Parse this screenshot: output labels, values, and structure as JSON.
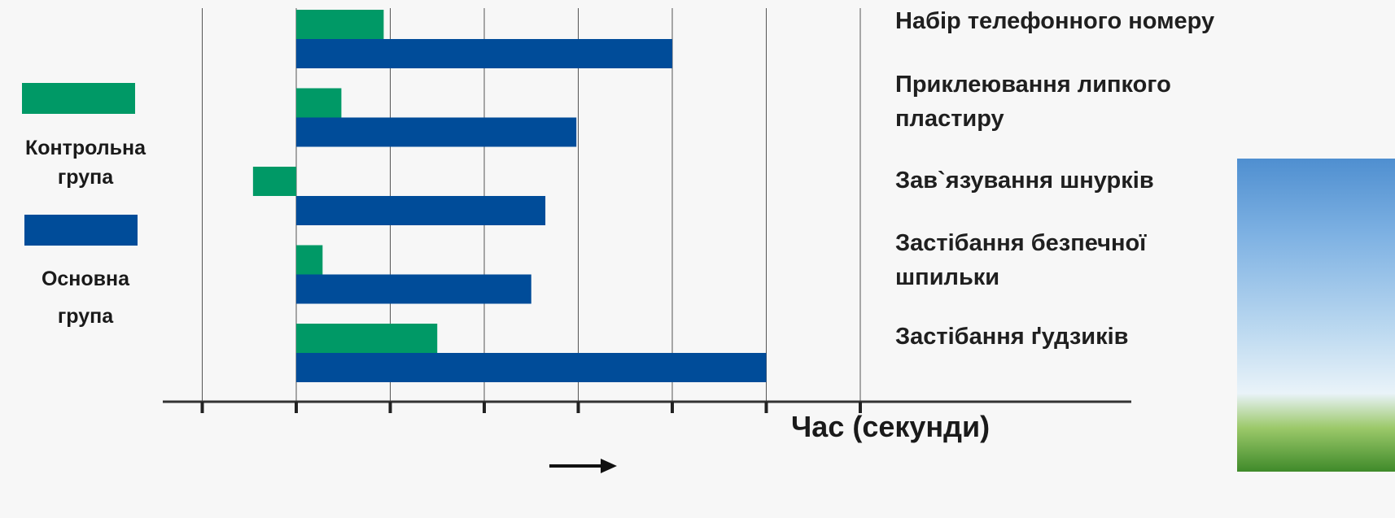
{
  "chart_data": {
    "type": "bar",
    "orientation": "horizontal",
    "categories": [
      "Набір телефонного номеру",
      "Приклеювання липкого пластиру",
      "Зав`язування шнурків",
      "Застібання безпечної шпильки",
      "Застібання ґудзиків"
    ],
    "category_labels_display": [
      "Набір телефонного номеру",
      "Приклеювання липкого\nпластиру",
      "Зав`язування шнурків",
      "Застібання безпечної\nшпильки",
      "Застібання ґудзиків"
    ],
    "series": [
      {
        "name": "Контрольна група",
        "color": "#009966",
        "values": [
          0.93,
          0.48,
          -0.46,
          0.28,
          1.5
        ]
      },
      {
        "name": "Основна група",
        "color": "#004c99",
        "values": [
          4.0,
          2.98,
          2.65,
          2.5,
          5.0
        ]
      }
    ],
    "xlim": [
      -1,
      6
    ],
    "xlabel": "Час (секунди)",
    "ylabel": "",
    "grid": "vertical",
    "legend": {
      "placement": "left",
      "items": [
        {
          "label": "Контрольна\nгрупа",
          "color": "#009966"
        },
        {
          "label": "Основна\nгрупа",
          "color": "#004c99"
        }
      ]
    },
    "annotations": [
      "arrow below x-axis pointing right"
    ]
  },
  "decor": {
    "photo": "sky-and-grass-photo"
  }
}
